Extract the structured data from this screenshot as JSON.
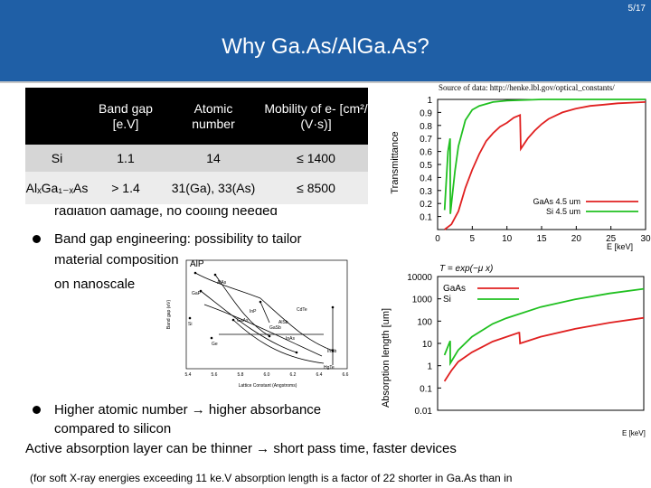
{
  "header": {
    "page_number": "5/17",
    "title": "Why  Ga.As/AlGa.As?",
    "background": "#1f5fa6"
  },
  "table": {
    "headers": [
      "",
      "Band gap [e.V]",
      "Atomic number",
      "Mobility of e- [cm²/ (V·s)]"
    ],
    "rows": [
      [
        "Si",
        "1.1",
        "14",
        "≤ 1400"
      ],
      [
        "AlₓGa₁₋ₓAs",
        "> 1.4",
        "31(Ga), 33(As)",
        "≤ 8500"
      ]
    ]
  },
  "bullets": {
    "partial_line": "radiation damage, no cooling needed",
    "band_gap_1": "Band gap engineering: possibility to tailor",
    "band_gap_2": "material composition",
    "band_gap_3": "on nanoscale",
    "atomic_1": "Higher atomic number → higher absorbance",
    "atomic_2": "compared to silicon",
    "active_layer": "Active absorption layer can be thinner → short pass time, faster devices",
    "footnote": "(for soft X-ray energies exceeding 11 ke.V absorption length is a factor of 22 shorter in Ga.As than in"
  },
  "source_note": "Source of data: http://henke.lbl.gov/optical_constants/",
  "formula": "T = exp(−μ x)",
  "lattice_diagram": {
    "ylabel": "Band gap (eV)",
    "xlabel": "Lattice Constant (Angstroms)",
    "materials": [
      "AlP",
      "AlAs",
      "GaP",
      "InP",
      "GaAs",
      "GaSb",
      "CdTe",
      "InAs",
      "AlSb",
      "Ge",
      "HgTe",
      "InSb",
      "Si"
    ],
    "xticks": [
      "5.4",
      "5.6",
      "5.8",
      "6.0",
      "6.2",
      "6.4",
      "6.6"
    ]
  },
  "chart_data": [
    {
      "type": "line",
      "xlabel": "E [keV]",
      "ylabel": "Transmittance",
      "xlim": [
        0,
        30
      ],
      "ylim": [
        0,
        1
      ],
      "xticks": [
        0,
        5,
        10,
        15,
        20,
        25,
        30
      ],
      "yticks": [
        0.1,
        0.2,
        0.3,
        0.4,
        0.5,
        0.6,
        0.7,
        0.8,
        0.9,
        1
      ],
      "series": [
        {
          "name": "GaAs 4.5 um",
          "color": "#e02020",
          "x": [
            1,
            2,
            3,
            4,
            5,
            6,
            7,
            8,
            9,
            10,
            11,
            11.9,
            12,
            13,
            14,
            15,
            16,
            18,
            20,
            22,
            24,
            26,
            28,
            30
          ],
          "y": [
            0,
            0.04,
            0.14,
            0.32,
            0.46,
            0.58,
            0.68,
            0.74,
            0.79,
            0.82,
            0.86,
            0.88,
            0.62,
            0.7,
            0.76,
            0.81,
            0.85,
            0.9,
            0.93,
            0.95,
            0.96,
            0.97,
            0.975,
            0.98
          ]
        },
        {
          "name": "Si 4.5 um",
          "color": "#20c020",
          "x": [
            1,
            1.5,
            1.8,
            1.84,
            2,
            2.5,
            3,
            4,
            5,
            6,
            8,
            10,
            15,
            20,
            25,
            30
          ],
          "y": [
            0.15,
            0.6,
            0.7,
            0.12,
            0.2,
            0.45,
            0.64,
            0.84,
            0.92,
            0.95,
            0.98,
            0.99,
            1.0,
            1.0,
            1.0,
            1.0
          ]
        }
      ]
    },
    {
      "type": "line",
      "xlabel": "E [keV]",
      "ylabel": "Absorption length [um]",
      "xlim": [
        0,
        30
      ],
      "ylim": [
        0.01,
        10000
      ],
      "yscale": "log",
      "yticks": [
        "10000",
        "1000",
        "100",
        "10",
        "1",
        "0.1",
        "0.01"
      ],
      "series": [
        {
          "name": "GaAs",
          "color": "#e02020",
          "x": [
            1,
            2,
            3,
            5,
            8,
            11.8,
            11.9,
            12,
            15,
            20,
            25,
            30
          ],
          "y": [
            0.2,
            0.6,
            1.5,
            4,
            12,
            30,
            30,
            10,
            20,
            45,
            85,
            140
          ]
        },
        {
          "name": "Si",
          "color": "#20c020",
          "x": [
            1,
            1.83,
            1.84,
            3,
            5,
            8,
            10,
            15,
            20,
            25,
            30
          ],
          "y": [
            3,
            13,
            1.3,
            5,
            20,
            75,
            135,
            430,
            950,
            1750,
            2800
          ]
        }
      ]
    }
  ]
}
